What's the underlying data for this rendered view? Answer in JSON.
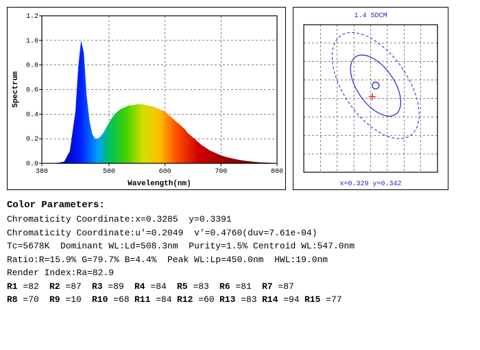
{
  "spectrum": {
    "type": "area",
    "xlabel": "Wavelength(nm)",
    "ylabel": "Spectrum",
    "xlim": [
      380,
      800
    ],
    "ylim": [
      0,
      1.2
    ],
    "xticks": [
      380,
      500,
      600,
      700,
      800
    ],
    "yticks": [
      0.0,
      0.2,
      0.4,
      0.6,
      0.8,
      1.0,
      1.2
    ],
    "border_color": "#000000",
    "grid_color": "#000000",
    "tick_fontsize": 10,
    "label_fontsize": 11,
    "data": [
      [
        380,
        0.0
      ],
      [
        390,
        0.001
      ],
      [
        400,
        0.002
      ],
      [
        410,
        0.005
      ],
      [
        420,
        0.015
      ],
      [
        430,
        0.1
      ],
      [
        440,
        0.42
      ],
      [
        445,
        0.78
      ],
      [
        450,
        1.0
      ],
      [
        455,
        0.9
      ],
      [
        460,
        0.55
      ],
      [
        465,
        0.35
      ],
      [
        470,
        0.24
      ],
      [
        475,
        0.2
      ],
      [
        480,
        0.2
      ],
      [
        485,
        0.22
      ],
      [
        490,
        0.25
      ],
      [
        495,
        0.29
      ],
      [
        500,
        0.33
      ],
      [
        505,
        0.37
      ],
      [
        510,
        0.4
      ],
      [
        515,
        0.42
      ],
      [
        520,
        0.44
      ],
      [
        525,
        0.45
      ],
      [
        530,
        0.46
      ],
      [
        535,
        0.47
      ],
      [
        540,
        0.47
      ],
      [
        545,
        0.475
      ],
      [
        550,
        0.48
      ],
      [
        555,
        0.48
      ],
      [
        560,
        0.48
      ],
      [
        565,
        0.475
      ],
      [
        570,
        0.47
      ],
      [
        575,
        0.465
      ],
      [
        580,
        0.46
      ],
      [
        585,
        0.45
      ],
      [
        590,
        0.44
      ],
      [
        595,
        0.43
      ],
      [
        600,
        0.42
      ],
      [
        605,
        0.4
      ],
      [
        610,
        0.38
      ],
      [
        615,
        0.36
      ],
      [
        620,
        0.34
      ],
      [
        625,
        0.32
      ],
      [
        630,
        0.3
      ],
      [
        635,
        0.28
      ],
      [
        640,
        0.25
      ],
      [
        645,
        0.23
      ],
      [
        650,
        0.21
      ],
      [
        655,
        0.19
      ],
      [
        660,
        0.17
      ],
      [
        665,
        0.15
      ],
      [
        670,
        0.135
      ],
      [
        675,
        0.12
      ],
      [
        680,
        0.105
      ],
      [
        685,
        0.095
      ],
      [
        690,
        0.085
      ],
      [
        695,
        0.075
      ],
      [
        700,
        0.065
      ],
      [
        710,
        0.05
      ],
      [
        720,
        0.04
      ],
      [
        730,
        0.03
      ],
      [
        740,
        0.022
      ],
      [
        750,
        0.017
      ],
      [
        760,
        0.012
      ],
      [
        770,
        0.008
      ],
      [
        780,
        0.006
      ],
      [
        790,
        0.004
      ],
      [
        800,
        0.002
      ]
    ],
    "gradient_stops": [
      {
        "wl": 380,
        "color": "#2a005a"
      },
      {
        "wl": 420,
        "color": "#0000b0"
      },
      {
        "wl": 450,
        "color": "#0020ff"
      },
      {
        "wl": 480,
        "color": "#00a0ff"
      },
      {
        "wl": 500,
        "color": "#00c060"
      },
      {
        "wl": 530,
        "color": "#40d000"
      },
      {
        "wl": 560,
        "color": "#d0e000"
      },
      {
        "wl": 590,
        "color": "#ffc000"
      },
      {
        "wl": 620,
        "color": "#ff5000"
      },
      {
        "wl": 660,
        "color": "#d00000"
      },
      {
        "wl": 780,
        "color": "#500000"
      }
    ]
  },
  "sdcm": {
    "title": "1.4 SDCM",
    "footer": "x=0.329 y=0.342",
    "grid_color": "#000000",
    "ellipse_color": "#2020c0",
    "marker_color_circle": "#2020c0",
    "marker_color_cross": "#ff2020",
    "grid_cells": 8,
    "point": {
      "gx": 4.3,
      "gy": 3.3
    },
    "cross": {
      "gx": 4.1,
      "gy": 3.9
    },
    "inner_ellipse": {
      "rx_cells": 1.1,
      "ry_cells": 1.9,
      "angle_deg": -35
    },
    "outer_ellipse": {
      "rx_cells": 1.9,
      "ry_cells": 3.3,
      "angle_deg": -35
    }
  },
  "params": {
    "title": "Color Parameters:",
    "lines": {
      "chrom_xy_label": "Chromaticity Coordinate:",
      "x": "x=0.3285",
      "y": "y=0.3391",
      "chrom_uv_label": "Chromaticity Coordinate:",
      "u": "u'=0.2049",
      "v": "v'=0.4760",
      "duv": "(duv=7.61e-04)",
      "tc": "Tc=5678K",
      "dom_wl": "Dominant WL:Ld=508.3nm",
      "purity": "Purity=1.5%",
      "centroid": "Centroid WL:547.0nm",
      "ratio": "Ratio:R=15.9% G=79.7% B=4.4%",
      "peak": "Peak WL:Lp=450.0nm",
      "hwl": "HWL:19.0nm",
      "ra": "Render Index:Ra=82.9"
    },
    "cri": [
      {
        "k": "R1",
        "v": "=82"
      },
      {
        "k": "R2",
        "v": "=87"
      },
      {
        "k": "R3",
        "v": "=89"
      },
      {
        "k": "R4",
        "v": "=84"
      },
      {
        "k": "R5",
        "v": "=83"
      },
      {
        "k": "R6",
        "v": "=81"
      },
      {
        "k": "R7",
        "v": "=87"
      },
      {
        "k": "R8",
        "v": "=70"
      },
      {
        "k": "R9",
        "v": "=10"
      },
      {
        "k": "R10",
        "v": "=68"
      },
      {
        "k": "R11",
        "v": "=84"
      },
      {
        "k": "R12",
        "v": "=60"
      },
      {
        "k": "R13",
        "v": "=83"
      },
      {
        "k": "R14",
        "v": "=94"
      },
      {
        "k": "R15",
        "v": "=77"
      }
    ]
  }
}
